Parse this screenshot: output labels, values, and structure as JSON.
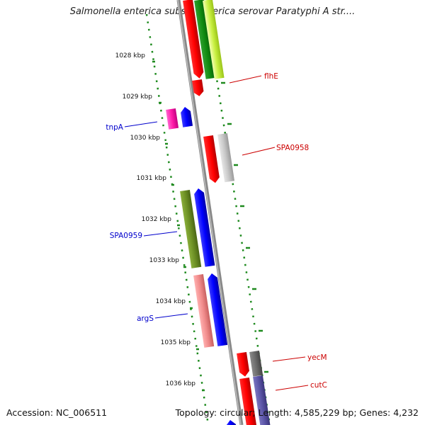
{
  "title": "Salmonella enterica subsp. enterica serovar Paratyphi A str....",
  "footer": {
    "accession": "Accession: NC_006511",
    "summary": "Topology: circular; Length: 4,585,229 bp; Genes: 4,232"
  },
  "colors": {
    "backbone": "#888888",
    "tick": "#1e8a1e",
    "ruler_label": "#111111",
    "forward_label": "#cc0000",
    "reverse_label": "#0000cc"
  },
  "ruler": {
    "unit": "kbp",
    "labels": [
      "1028 kbp",
      "1029 kbp",
      "1030 kbp",
      "1031 kbp",
      "1032 kbp",
      "1033 kbp",
      "1034 kbp",
      "1035 kbp",
      "1036 kbp"
    ],
    "label_values_kbp": [
      1028,
      1029,
      1030,
      1031,
      1032,
      1033,
      1034,
      1035,
      1036
    ]
  },
  "genes_forward": [
    {
      "name": "flhE",
      "labeled": true,
      "color": "#ff0000",
      "label_color": "#cc0000"
    },
    {
      "name": "SPA0958",
      "labeled": true,
      "color": "#ff0000",
      "label_color": "#cc0000"
    },
    {
      "name": "yecM",
      "labeled": true,
      "color": "#ff0000",
      "label_color": "#cc0000"
    },
    {
      "name": "cutC",
      "labeled": true,
      "color": "#ff0000",
      "label_color": "#cc0000"
    }
  ],
  "genes_reverse": [
    {
      "name": "tnpA",
      "labeled": true,
      "color": "#0000ff",
      "label_color": "#0000cc"
    },
    {
      "name": "SPA0959",
      "labeled": true,
      "color": "#0000ff",
      "label_color": "#0000cc"
    },
    {
      "name": "argS",
      "labeled": true,
      "color": "#0000ff",
      "label_color": "#0000cc"
    }
  ]
}
